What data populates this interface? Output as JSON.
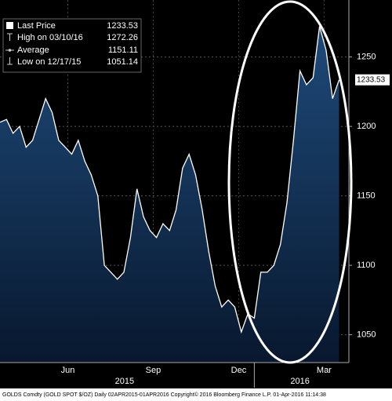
{
  "chart_data": {
    "type": "area",
    "values": [
      1203,
      1205,
      1195,
      1200,
      1185,
      1190,
      1205,
      1220,
      1210,
      1190,
      1185,
      1180,
      1190,
      1175,
      1165,
      1150,
      1100,
      1095,
      1090,
      1095,
      1120,
      1155,
      1135,
      1125,
      1120,
      1130,
      1125,
      1140,
      1170,
      1180,
      1165,
      1140,
      1110,
      1085,
      1070,
      1075,
      1070,
      1052,
      1065,
      1062,
      1095,
      1095,
      1100,
      1115,
      1145,
      1190,
      1240,
      1230,
      1235,
      1272,
      1255,
      1220,
      1233.53
    ],
    "color": "#ffffff",
    "xlim": [
      0,
      53.5
    ],
    "xticks": [
      {
        "value": 10.4,
        "label": "Jun"
      },
      {
        "value": 23.5,
        "label": "Sep"
      },
      {
        "value": 36.6,
        "label": "Dec"
      },
      {
        "value": 49.7,
        "label": "Mar"
      }
    ],
    "year_labels": [
      {
        "value": 19.1,
        "label": "2015"
      },
      {
        "value": 46,
        "label": "2016"
      }
    ],
    "ylim": [
      1030,
      1291
    ],
    "yticks": [
      1050,
      1100,
      1150,
      1200,
      1250
    ],
    "grid": true,
    "legend": [
      {
        "label": "Last Price",
        "value": 1233.53
      },
      {
        "label": "High on 03/10/16",
        "value": 1272.26
      },
      {
        "label": "Average",
        "value": 1151.11
      },
      {
        "label": "Low on 12/17/15",
        "value": 1051.14
      }
    ],
    "footer": "GOLDS Comdty (GOLD SPOT $/OZ)  Daily 02APR2015-01APR2016  Copyright© 2016 Bloomberg Finance L.P.   01-Apr-2016 11:14:38"
  }
}
